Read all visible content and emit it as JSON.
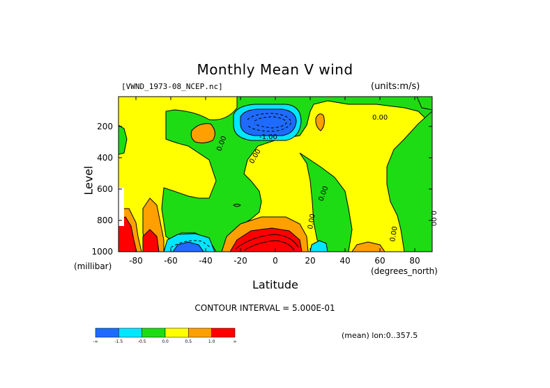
{
  "chart_data": {
    "type": "heatmap",
    "title": "Monthly Mean V wind",
    "dataset": "[VWND_1973-08_NCEP.nc]",
    "units": "(units:m/s)",
    "xlabel": "Latitude",
    "xunit": "(degrees_north)",
    "ylabel": "Level",
    "yunit": "(millibar)",
    "x_ticks": [
      -80,
      -60,
      -40,
      -20,
      0,
      20,
      40,
      60,
      80
    ],
    "y_ticks": [
      200,
      400,
      600,
      800,
      1000
    ],
    "xlim": [
      -90,
      90
    ],
    "ylim": [
      1000,
      10
    ],
    "contour_interval": "CONTOUR INTERVAL = 5.000E-01",
    "contour_labels": [
      "0.00",
      "0.00",
      "0.00",
      "0.00",
      "0.00",
      "0.00",
      "0.00",
      "-1.00"
    ],
    "subtitle_right": "(mean) lon:0..357.5",
    "colorbar": {
      "levels": [
        "-∞",
        "-1.5",
        "-0.5",
        "0.0",
        "0.5",
        "1.0",
        "∞"
      ],
      "colors": [
        "#1f6bff",
        "#00e6ff",
        "#1edc14",
        "#ffff00",
        "#ffa000",
        "#ff0000"
      ]
    }
  }
}
